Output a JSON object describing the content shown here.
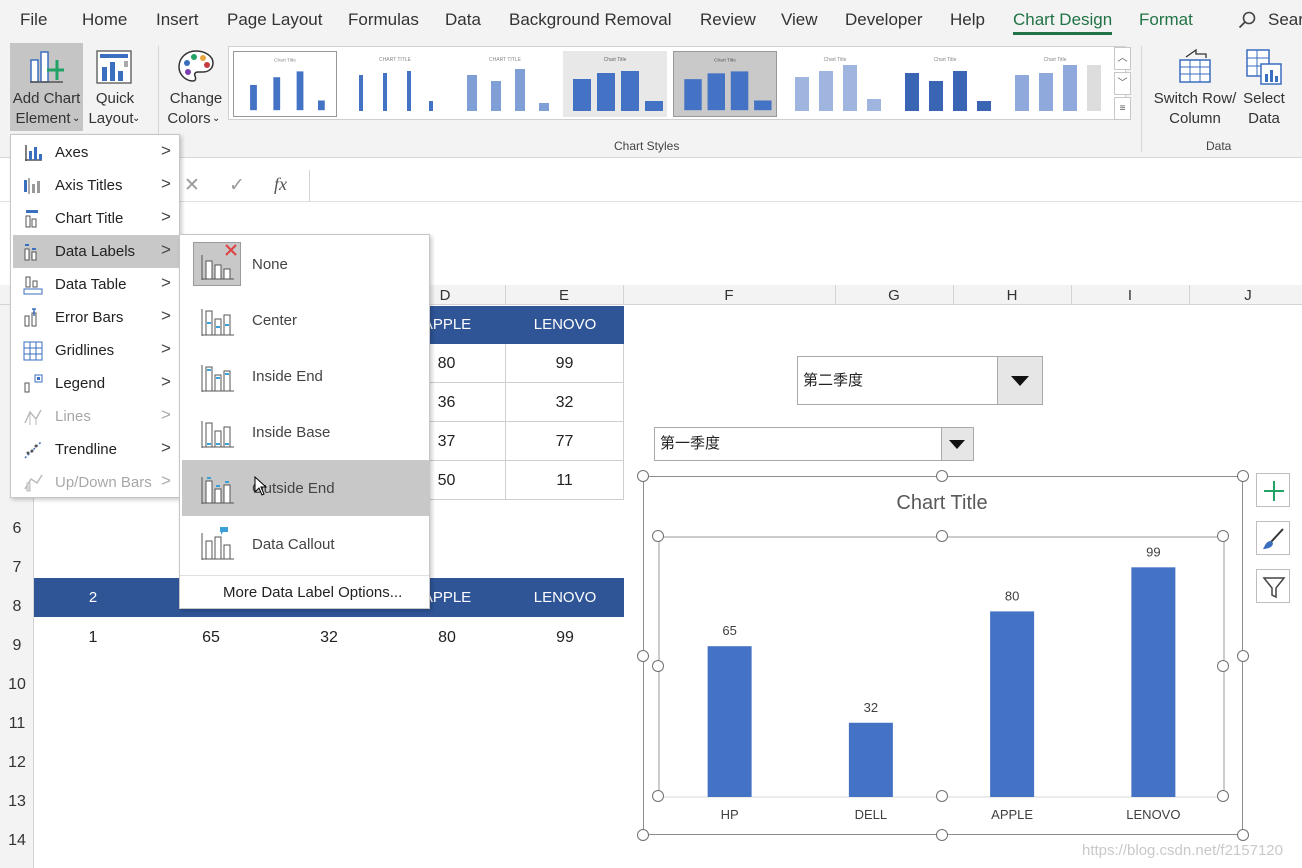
{
  "menubar": {
    "tabs": [
      "File",
      "Home",
      "Insert",
      "Page Layout",
      "Formulas",
      "Data",
      "Background Removal",
      "Review",
      "View",
      "Developer",
      "Help",
      "Chart Design",
      "Format"
    ],
    "active_tab": "Chart Design",
    "search_label": "Sear"
  },
  "ribbon": {
    "add_chart_element": [
      "Add Chart",
      "Element"
    ],
    "quick_layout": [
      "Quick",
      "Layout"
    ],
    "change_colors": [
      "Change",
      "Colors"
    ],
    "chart_styles_label": "Chart Styles",
    "switch_row_column": [
      "Switch Row/",
      "Column"
    ],
    "select_data": [
      "Select",
      "Data"
    ],
    "data_group_label": "Data"
  },
  "formula_bar": {
    "cancel_icon": "✕",
    "enter_icon": "✓",
    "fx_label": "fx"
  },
  "columns": [
    "D",
    "E",
    "F",
    "G",
    "H",
    "I",
    "J"
  ],
  "rows": [
    "6",
    "7",
    "8",
    "9",
    "10",
    "11",
    "12",
    "13",
    "14"
  ],
  "table1": {
    "headers": [
      "APPLE",
      "LENOVO"
    ],
    "rows": [
      [
        "80",
        "99"
      ],
      [
        "36",
        "32"
      ],
      [
        "37",
        "77"
      ],
      [
        "50",
        "11"
      ]
    ]
  },
  "table2": {
    "headers": [
      "2",
      "APPLE",
      "LENOVO"
    ],
    "row": [
      "1",
      "65",
      "32",
      "80",
      "99"
    ]
  },
  "combos": {
    "quarter2": "第二季度",
    "quarter1": "第一季度"
  },
  "add_element_menu": [
    {
      "label": "Axes",
      "enabled": true
    },
    {
      "label": "Axis Titles",
      "enabled": true
    },
    {
      "label": "Chart Title",
      "enabled": true
    },
    {
      "label": "Data Labels",
      "enabled": true,
      "selected": true
    },
    {
      "label": "Data Table",
      "enabled": true
    },
    {
      "label": "Error Bars",
      "enabled": true
    },
    {
      "label": "Gridlines",
      "enabled": true
    },
    {
      "label": "Legend",
      "enabled": true
    },
    {
      "label": "Lines",
      "enabled": false
    },
    {
      "label": "Trendline",
      "enabled": true
    },
    {
      "label": "Up/Down Bars",
      "enabled": false
    }
  ],
  "data_labels_menu": {
    "items": [
      "None",
      "Center",
      "Inside End",
      "Inside Base",
      "Outside End",
      "Data Callout"
    ],
    "selected": "Outside End",
    "more_options": "More Data Label Options..."
  },
  "chart_data": {
    "type": "bar",
    "title": "Chart Title",
    "categories": [
      "HP",
      "DELL",
      "APPLE",
      "LENOVO"
    ],
    "values": [
      65,
      32,
      80,
      99
    ],
    "ylim": [
      0,
      100
    ],
    "bar_color": "#4472c4",
    "data_labels": "outside-end",
    "grid": false,
    "legend": "none"
  },
  "colors": {
    "accent_green": "#217346",
    "header_blue": "#2f5597",
    "bar_blue": "#4472c4",
    "menu_highlight": "#c8c8c8"
  },
  "watermark": "https://blog.csdn.net/f2157120"
}
